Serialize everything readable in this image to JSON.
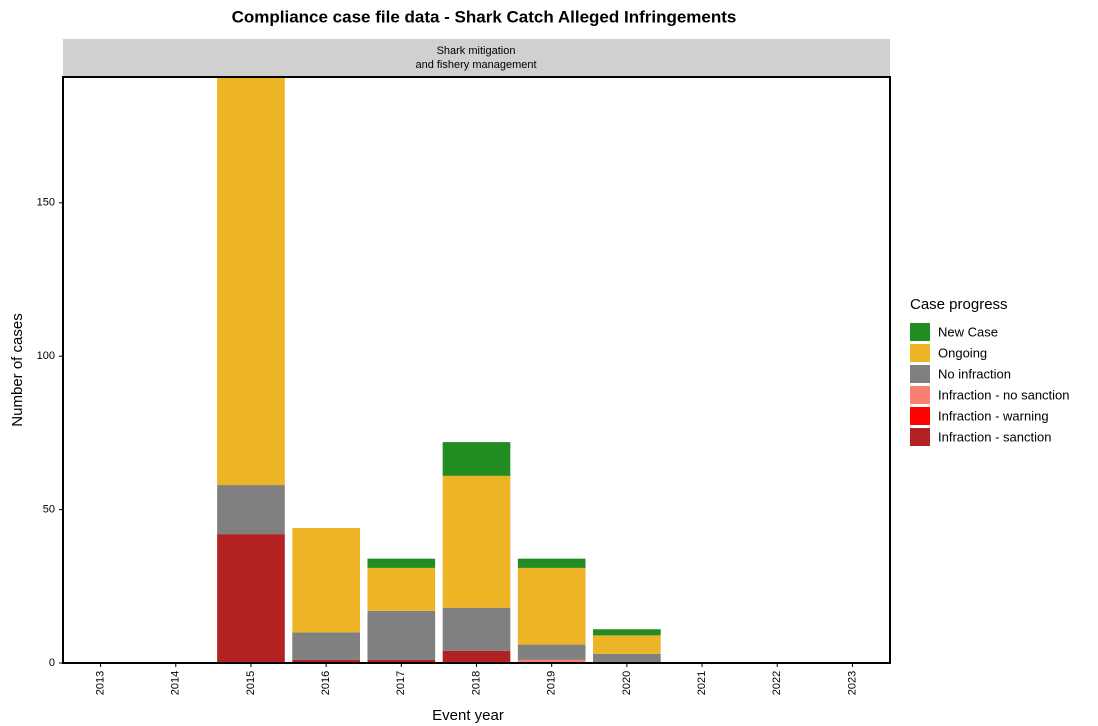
{
  "chart_data": {
    "type": "stacked-bar",
    "title": "Compliance case file data - Shark Catch Alleged Infringements",
    "strip": [
      "Shark mitigation",
      "and fishery management"
    ],
    "xlabel": "Event year",
    "ylabel": "Number of cases",
    "legend_title": "Case progress",
    "categories": [
      "2013",
      "2014",
      "2015",
      "2016",
      "2017",
      "2018",
      "2019",
      "2020",
      "2021",
      "2022",
      "2023"
    ],
    "series": [
      {
        "name": "New Case",
        "color": "#228b22",
        "values": [
          0,
          0,
          0,
          0,
          3,
          11,
          3,
          2,
          0,
          0,
          0
        ]
      },
      {
        "name": "Ongoing",
        "color": "#edb525",
        "values": [
          0,
          0,
          133,
          34,
          14,
          43,
          25,
          6,
          0,
          0,
          0
        ]
      },
      {
        "name": "No infraction",
        "color": "#808080",
        "values": [
          0,
          0,
          16,
          9,
          16,
          14,
          5,
          3,
          0,
          0,
          0
        ]
      },
      {
        "name": "Infraction - no sanction",
        "color": "#fa8072",
        "values": [
          0,
          0,
          0,
          0,
          0,
          0,
          1,
          0,
          0,
          0,
          0
        ]
      },
      {
        "name": "Infraction - warning",
        "color": "#ff0000",
        "values": [
          0,
          0,
          0,
          0,
          0,
          0,
          0,
          0,
          0,
          0,
          0
        ]
      },
      {
        "name": "Infraction - sanction",
        "color": "#b22222",
        "values": [
          0,
          0,
          42,
          1,
          1,
          4,
          0,
          0,
          0,
          0,
          0
        ]
      }
    ],
    "ylim": [
      0,
      191
    ],
    "yticks": [
      0,
      50,
      100,
      150
    ]
  }
}
